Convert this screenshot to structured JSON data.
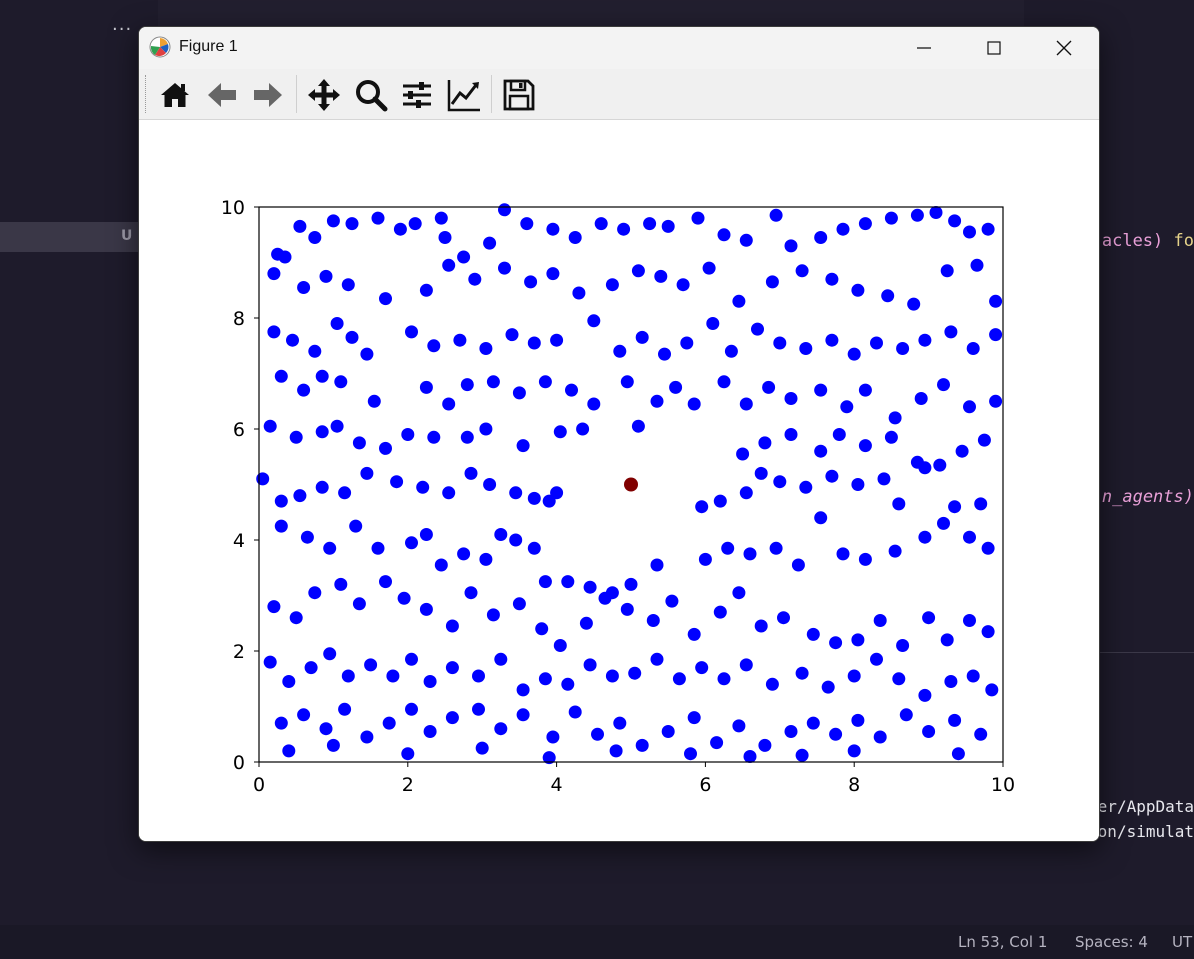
{
  "window": {
    "title": "Figure 1"
  },
  "editor": {
    "line1_pre": "acles) ",
    "line1_post": "fo",
    "line2": "n_agents)",
    "term1": "er/AppData",
    "term2": "on/simulat",
    "sidebar_letter": "U",
    "tabs_more": "..."
  },
  "status": {
    "position": "Ln 53, Col 1",
    "spaces": "Spaces: 4",
    "encoding": "UT"
  },
  "toolbar": {
    "icons": [
      "home-icon",
      "back-arrow-icon",
      "forward-arrow-icon",
      "pan-icon",
      "zoom-icon",
      "configure-subplots-icon",
      "edit-axis-icon",
      "save-icon"
    ]
  },
  "colors": {
    "agent": "#0000ff",
    "target": "#800000",
    "background": "#1e1b2b"
  },
  "chart_data": {
    "type": "scatter",
    "xlim": [
      0,
      10
    ],
    "ylim": [
      0,
      10
    ],
    "xticks": [
      "0",
      "2",
      "4",
      "6",
      "8",
      "10"
    ],
    "yticks": [
      "0",
      "2",
      "4",
      "6",
      "8",
      "10"
    ],
    "grid": false,
    "series": [
      {
        "color": "#0000ff",
        "points": [
          [
            0.25,
            9.15
          ],
          [
            0.35,
            9.1
          ],
          [
            0.55,
            9.65
          ],
          [
            0.75,
            9.45
          ],
          [
            1.0,
            9.75
          ],
          [
            1.25,
            9.7
          ],
          [
            1.6,
            9.8
          ],
          [
            1.9,
            9.6
          ],
          [
            2.1,
            9.7
          ],
          [
            2.45,
            9.8
          ],
          [
            2.5,
            9.45
          ],
          [
            2.75,
            9.1
          ],
          [
            3.1,
            9.35
          ],
          [
            3.3,
            9.95
          ],
          [
            3.6,
            9.7
          ],
          [
            3.95,
            9.6
          ],
          [
            4.25,
            9.45
          ],
          [
            4.6,
            9.7
          ],
          [
            4.9,
            9.6
          ],
          [
            5.25,
            9.7
          ],
          [
            5.5,
            9.65
          ],
          [
            5.9,
            9.8
          ],
          [
            6.25,
            9.5
          ],
          [
            6.55,
            9.4
          ],
          [
            6.95,
            9.85
          ],
          [
            7.15,
            9.3
          ],
          [
            7.55,
            9.45
          ],
          [
            7.85,
            9.6
          ],
          [
            8.15,
            9.7
          ],
          [
            8.5,
            9.8
          ],
          [
            8.85,
            9.85
          ],
          [
            9.1,
            9.9
          ],
          [
            9.35,
            9.75
          ],
          [
            9.55,
            9.55
          ],
          [
            9.8,
            9.6
          ],
          [
            0.2,
            8.8
          ],
          [
            0.6,
            8.55
          ],
          [
            0.9,
            8.75
          ],
          [
            1.2,
            8.6
          ],
          [
            1.7,
            8.35
          ],
          [
            2.25,
            8.5
          ],
          [
            2.55,
            8.95
          ],
          [
            2.9,
            8.7
          ],
          [
            3.3,
            8.9
          ],
          [
            3.65,
            8.65
          ],
          [
            3.95,
            8.8
          ],
          [
            4.3,
            8.45
          ],
          [
            4.75,
            8.6
          ],
          [
            5.1,
            8.85
          ],
          [
            5.4,
            8.75
          ],
          [
            5.7,
            8.6
          ],
          [
            6.05,
            8.9
          ],
          [
            6.45,
            8.3
          ],
          [
            6.9,
            8.65
          ],
          [
            7.3,
            8.85
          ],
          [
            7.7,
            8.7
          ],
          [
            8.05,
            8.5
          ],
          [
            8.45,
            8.4
          ],
          [
            8.8,
            8.25
          ],
          [
            9.25,
            8.85
          ],
          [
            9.65,
            8.95
          ],
          [
            9.9,
            8.3
          ],
          [
            0.2,
            7.75
          ],
          [
            0.45,
            7.6
          ],
          [
            0.75,
            7.4
          ],
          [
            1.05,
            7.9
          ],
          [
            1.25,
            7.65
          ],
          [
            1.45,
            7.35
          ],
          [
            2.05,
            7.75
          ],
          [
            2.35,
            7.5
          ],
          [
            2.7,
            7.6
          ],
          [
            3.05,
            7.45
          ],
          [
            3.4,
            7.7
          ],
          [
            3.7,
            7.55
          ],
          [
            4.0,
            7.6
          ],
          [
            4.5,
            7.95
          ],
          [
            4.85,
            7.4
          ],
          [
            5.15,
            7.65
          ],
          [
            5.45,
            7.35
          ],
          [
            5.75,
            7.55
          ],
          [
            6.1,
            7.9
          ],
          [
            6.35,
            7.4
          ],
          [
            6.7,
            7.8
          ],
          [
            7.0,
            7.55
          ],
          [
            7.35,
            7.45
          ],
          [
            7.7,
            7.6
          ],
          [
            8.0,
            7.35
          ],
          [
            8.3,
            7.55
          ],
          [
            8.65,
            7.45
          ],
          [
            8.95,
            7.6
          ],
          [
            9.3,
            7.75
          ],
          [
            9.6,
            7.45
          ],
          [
            9.9,
            7.7
          ],
          [
            0.3,
            6.95
          ],
          [
            0.6,
            6.7
          ],
          [
            0.85,
            6.95
          ],
          [
            1.1,
            6.85
          ],
          [
            1.55,
            6.5
          ],
          [
            2.25,
            6.75
          ],
          [
            2.55,
            6.45
          ],
          [
            2.8,
            6.8
          ],
          [
            3.15,
            6.85
          ],
          [
            3.5,
            6.65
          ],
          [
            3.85,
            6.85
          ],
          [
            4.2,
            6.7
          ],
          [
            4.5,
            6.45
          ],
          [
            4.95,
            6.85
          ],
          [
            5.35,
            6.5
          ],
          [
            5.6,
            6.75
          ],
          [
            5.85,
            6.45
          ],
          [
            6.25,
            6.85
          ],
          [
            6.55,
            6.45
          ],
          [
            6.85,
            6.75
          ],
          [
            7.15,
            6.55
          ],
          [
            7.55,
            6.7
          ],
          [
            7.9,
            6.4
          ],
          [
            8.15,
            6.7
          ],
          [
            8.55,
            6.2
          ],
          [
            8.9,
            6.55
          ],
          [
            9.2,
            6.8
          ],
          [
            9.55,
            6.4
          ],
          [
            9.9,
            6.5
          ],
          [
            0.15,
            6.05
          ],
          [
            0.5,
            5.85
          ],
          [
            0.85,
            5.95
          ],
          [
            1.05,
            6.05
          ],
          [
            1.35,
            5.75
          ],
          [
            1.7,
            5.65
          ],
          [
            2.0,
            5.9
          ],
          [
            2.35,
            5.85
          ],
          [
            2.8,
            5.85
          ],
          [
            3.05,
            6.0
          ],
          [
            3.55,
            5.7
          ],
          [
            4.05,
            5.95
          ],
          [
            4.35,
            6.0
          ],
          [
            5.1,
            6.05
          ],
          [
            6.5,
            5.55
          ],
          [
            6.8,
            5.75
          ],
          [
            7.15,
            5.9
          ],
          [
            7.55,
            5.6
          ],
          [
            7.8,
            5.9
          ],
          [
            8.15,
            5.7
          ],
          [
            8.5,
            5.85
          ],
          [
            8.85,
            5.4
          ],
          [
            9.15,
            5.35
          ],
          [
            9.45,
            5.6
          ],
          [
            9.75,
            5.8
          ],
          [
            0.05,
            5.1
          ],
          [
            0.3,
            4.7
          ],
          [
            0.55,
            4.8
          ],
          [
            0.85,
            4.95
          ],
          [
            1.15,
            4.85
          ],
          [
            1.45,
            5.2
          ],
          [
            1.85,
            5.05
          ],
          [
            2.2,
            4.95
          ],
          [
            2.55,
            4.85
          ],
          [
            2.85,
            5.2
          ],
          [
            3.1,
            5.0
          ],
          [
            3.45,
            4.85
          ],
          [
            3.7,
            4.75
          ],
          [
            3.9,
            4.7
          ],
          [
            4.0,
            4.85
          ],
          [
            5.95,
            4.6
          ],
          [
            6.2,
            4.7
          ],
          [
            6.55,
            4.85
          ],
          [
            6.75,
            5.2
          ],
          [
            7.0,
            5.05
          ],
          [
            7.35,
            4.95
          ],
          [
            7.7,
            5.15
          ],
          [
            8.05,
            5.0
          ],
          [
            8.4,
            5.1
          ],
          [
            8.6,
            4.65
          ],
          [
            8.95,
            5.3
          ],
          [
            9.35,
            4.6
          ],
          [
            9.7,
            4.65
          ],
          [
            0.3,
            4.25
          ],
          [
            0.65,
            4.05
          ],
          [
            0.95,
            3.85
          ],
          [
            1.3,
            4.25
          ],
          [
            1.6,
            3.85
          ],
          [
            2.05,
            3.95
          ],
          [
            2.25,
            4.1
          ],
          [
            2.45,
            3.55
          ],
          [
            2.75,
            3.75
          ],
          [
            3.05,
            3.65
          ],
          [
            3.25,
            4.1
          ],
          [
            3.45,
            4.0
          ],
          [
            3.7,
            3.85
          ],
          [
            3.85,
            3.25
          ],
          [
            4.15,
            3.25
          ],
          [
            4.45,
            3.15
          ],
          [
            4.75,
            3.05
          ],
          [
            5.0,
            3.2
          ],
          [
            5.35,
            3.55
          ],
          [
            6.0,
            3.65
          ],
          [
            6.3,
            3.85
          ],
          [
            6.6,
            3.75
          ],
          [
            6.95,
            3.85
          ],
          [
            7.25,
            3.55
          ],
          [
            7.55,
            4.4
          ],
          [
            7.85,
            3.75
          ],
          [
            8.15,
            3.65
          ],
          [
            8.55,
            3.8
          ],
          [
            8.95,
            4.05
          ],
          [
            9.2,
            4.3
          ],
          [
            9.55,
            4.05
          ],
          [
            9.8,
            3.85
          ],
          [
            0.2,
            2.8
          ],
          [
            0.5,
            2.6
          ],
          [
            0.75,
            3.05
          ],
          [
            1.1,
            3.2
          ],
          [
            1.35,
            2.85
          ],
          [
            1.7,
            3.25
          ],
          [
            1.95,
            2.95
          ],
          [
            2.25,
            2.75
          ],
          [
            2.6,
            2.45
          ],
          [
            2.85,
            3.05
          ],
          [
            3.15,
            2.65
          ],
          [
            3.5,
            2.85
          ],
          [
            3.8,
            2.4
          ],
          [
            4.05,
            2.1
          ],
          [
            4.4,
            2.5
          ],
          [
            4.65,
            2.95
          ],
          [
            4.95,
            2.75
          ],
          [
            5.3,
            2.55
          ],
          [
            5.55,
            2.9
          ],
          [
            5.85,
            2.3
          ],
          [
            6.2,
            2.7
          ],
          [
            6.45,
            3.05
          ],
          [
            6.75,
            2.45
          ],
          [
            7.05,
            2.6
          ],
          [
            7.45,
            2.3
          ],
          [
            7.75,
            2.15
          ],
          [
            8.05,
            2.2
          ],
          [
            8.35,
            2.55
          ],
          [
            8.65,
            2.1
          ],
          [
            9.0,
            2.6
          ],
          [
            9.25,
            2.2
          ],
          [
            9.55,
            2.55
          ],
          [
            9.8,
            2.35
          ],
          [
            0.15,
            1.8
          ],
          [
            0.4,
            1.45
          ],
          [
            0.7,
            1.7
          ],
          [
            0.95,
            1.95
          ],
          [
            1.2,
            1.55
          ],
          [
            1.5,
            1.75
          ],
          [
            1.8,
            1.55
          ],
          [
            2.05,
            1.85
          ],
          [
            2.3,
            1.45
          ],
          [
            2.6,
            1.7
          ],
          [
            2.95,
            1.55
          ],
          [
            3.25,
            1.85
          ],
          [
            3.55,
            1.3
          ],
          [
            3.85,
            1.5
          ],
          [
            4.15,
            1.4
          ],
          [
            4.45,
            1.75
          ],
          [
            4.75,
            1.55
          ],
          [
            5.05,
            1.6
          ],
          [
            5.35,
            1.85
          ],
          [
            5.65,
            1.5
          ],
          [
            5.95,
            1.7
          ],
          [
            6.25,
            1.5
          ],
          [
            6.55,
            1.75
          ],
          [
            6.9,
            1.4
          ],
          [
            7.3,
            1.6
          ],
          [
            7.65,
            1.35
          ],
          [
            8.0,
            1.55
          ],
          [
            8.3,
            1.85
          ],
          [
            8.6,
            1.5
          ],
          [
            8.95,
            1.2
          ],
          [
            9.3,
            1.45
          ],
          [
            9.6,
            1.55
          ],
          [
            9.85,
            1.3
          ],
          [
            0.3,
            0.7
          ],
          [
            0.6,
            0.85
          ],
          [
            0.9,
            0.6
          ],
          [
            1.15,
            0.95
          ],
          [
            1.45,
            0.45
          ],
          [
            1.75,
            0.7
          ],
          [
            2.05,
            0.95
          ],
          [
            2.3,
            0.55
          ],
          [
            2.6,
            0.8
          ],
          [
            2.95,
            0.95
          ],
          [
            3.25,
            0.6
          ],
          [
            3.55,
            0.85
          ],
          [
            3.95,
            0.45
          ],
          [
            4.25,
            0.9
          ],
          [
            4.55,
            0.5
          ],
          [
            4.85,
            0.7
          ],
          [
            5.15,
            0.3
          ],
          [
            5.5,
            0.55
          ],
          [
            5.85,
            0.8
          ],
          [
            6.15,
            0.35
          ],
          [
            6.45,
            0.65
          ],
          [
            6.8,
            0.3
          ],
          [
            7.15,
            0.55
          ],
          [
            7.45,
            0.7
          ],
          [
            7.75,
            0.5
          ],
          [
            8.05,
            0.75
          ],
          [
            8.35,
            0.45
          ],
          [
            8.7,
            0.85
          ],
          [
            9.0,
            0.55
          ],
          [
            9.35,
            0.75
          ],
          [
            9.7,
            0.5
          ],
          [
            0.4,
            0.2
          ],
          [
            1.0,
            0.3
          ],
          [
            2.0,
            0.15
          ],
          [
            3.0,
            0.25
          ],
          [
            3.9,
            0.08
          ],
          [
            4.8,
            0.2
          ],
          [
            5.8,
            0.15
          ],
          [
            6.6,
            0.1
          ],
          [
            7.3,
            0.12
          ],
          [
            8.0,
            0.2
          ],
          [
            9.4,
            0.15
          ]
        ]
      },
      {
        "color": "#800000",
        "points": [
          [
            5.0,
            5.0
          ]
        ]
      }
    ]
  }
}
